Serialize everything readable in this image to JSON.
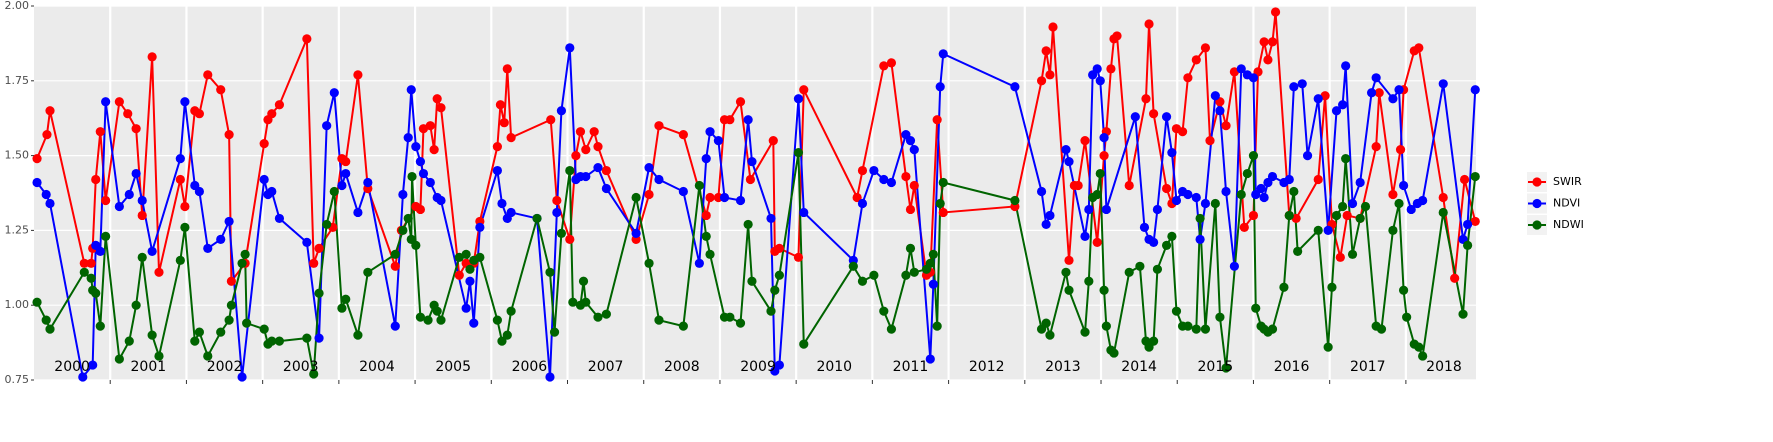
{
  "chart_data": {
    "type": "line",
    "xlim": [
      2000,
      2018.92
    ],
    "xticks": [
      2001,
      2002,
      2003,
      2004,
      2005,
      2006,
      2007,
      2008,
      2009,
      2010,
      2011,
      2012,
      2013,
      2014,
      2015,
      2016,
      2017,
      2018
    ],
    "year_labels": [
      {
        "value": 2000.5,
        "label": "2000"
      },
      {
        "value": 2001.5,
        "label": "2001"
      },
      {
        "value": 2002.5,
        "label": "2002"
      },
      {
        "value": 2003.5,
        "label": "2003"
      },
      {
        "value": 2004.5,
        "label": "2004"
      },
      {
        "value": 2005.5,
        "label": "2005"
      },
      {
        "value": 2006.5,
        "label": "2006"
      },
      {
        "value": 2007.5,
        "label": "2007"
      },
      {
        "value": 2008.5,
        "label": "2008"
      },
      {
        "value": 2009.5,
        "label": "2009"
      },
      {
        "value": 2010.5,
        "label": "2010"
      },
      {
        "value": 2011.5,
        "label": "2011"
      },
      {
        "value": 2012.5,
        "label": "2012"
      },
      {
        "value": 2013.5,
        "label": "2013"
      },
      {
        "value": 2014.5,
        "label": "2014"
      },
      {
        "value": 2015.5,
        "label": "2015"
      },
      {
        "value": 2016.5,
        "label": "2016"
      },
      {
        "value": 2017.5,
        "label": "2017"
      },
      {
        "value": 2018.5,
        "label": "2018"
      }
    ],
    "ylim": [
      0.75,
      2.0
    ],
    "yticks": [
      {
        "value": 0.75,
        "label": "0.75"
      },
      {
        "value": 1.0,
        "label": "1.00"
      },
      {
        "value": 1.25,
        "label": "1.25"
      },
      {
        "value": 1.5,
        "label": "1.50"
      },
      {
        "value": 1.75,
        "label": "1.75"
      },
      {
        "value": 2.0,
        "label": "2.00"
      }
    ],
    "grid": true,
    "legend": "right",
    "series": [
      {
        "name": "SWIR",
        "color": "#ff0000",
        "x": [
          2000.04,
          2000.17,
          2000.21,
          2000.66,
          2000.75,
          2000.77,
          2000.81,
          2000.87,
          2000.94,
          2001.12,
          2001.23,
          2001.34,
          2001.42,
          2001.55,
          2001.64,
          2001.92,
          2001.98,
          2002.11,
          2002.17,
          2002.28,
          2002.45,
          2002.56,
          2002.59,
          2002.77,
          2003.02,
          2003.07,
          2003.12,
          2003.22,
          2003.58,
          2003.67,
          2003.74,
          2003.92,
          2004.04,
          2004.09,
          2004.25,
          2004.38,
          2004.74,
          2004.82,
          2005.01,
          2005.07,
          2005.11,
          2005.2,
          2005.25,
          2005.29,
          2005.34,
          2005.58,
          2005.67,
          2005.77,
          2005.85,
          2006.08,
          2006.12,
          2006.17,
          2006.21,
          2006.26,
          2006.78,
          2006.86,
          2007.03,
          2007.11,
          2007.17,
          2007.24,
          2007.35,
          2007.4,
          2007.51,
          2007.9,
          2008.07,
          2008.2,
          2008.52,
          2008.82,
          2008.87,
          2008.98,
          2009.06,
          2009.13,
          2009.27,
          2009.4,
          2009.7,
          2009.72,
          2009.78,
          2010.03,
          2010.1,
          2010.8,
          2010.87,
          2011.15,
          2011.25,
          2011.44,
          2011.5,
          2011.55,
          2011.71,
          2011.76,
          2011.85,
          2011.93,
          2012.87,
          2013.22,
          2013.28,
          2013.33,
          2013.37,
          2013.58,
          2013.65,
          2013.7,
          2013.79,
          2013.95,
          2014.04,
          2014.07,
          2014.13,
          2014.17,
          2014.21,
          2014.37,
          2014.59,
          2014.63,
          2014.69,
          2014.86,
          2014.93,
          2014.99,
          2015.07,
          2015.14,
          2015.25,
          2015.37,
          2015.43,
          2015.56,
          2015.64,
          2015.75,
          2015.88,
          2016.0,
          2016.06,
          2016.14,
          2016.19,
          2016.25,
          2016.29,
          2016.47,
          2016.56,
          2016.85,
          2016.94,
          2017.03,
          2017.14,
          2017.23,
          2017.4,
          2017.61,
          2017.65,
          2017.83,
          2017.93,
          2017.97,
          2018.11,
          2018.17,
          2018.49,
          2018.64,
          2018.77,
          2018.91
        ],
        "values": [
          1.49,
          1.57,
          1.65,
          1.14,
          1.14,
          1.19,
          1.42,
          1.58,
          1.35,
          1.68,
          1.64,
          1.59,
          1.3,
          1.83,
          1.11,
          1.42,
          1.33,
          1.65,
          1.64,
          1.77,
          1.72,
          1.57,
          1.08,
          1.14,
          1.54,
          1.62,
          1.64,
          1.67,
          1.89,
          1.14,
          1.19,
          1.26,
          1.49,
          1.48,
          1.77,
          1.39,
          1.13,
          1.25,
          1.33,
          1.32,
          1.59,
          1.6,
          1.52,
          1.69,
          1.66,
          1.1,
          1.14,
          1.14,
          1.28,
          1.53,
          1.67,
          1.61,
          1.79,
          1.56,
          1.62,
          1.35,
          1.22,
          1.5,
          1.58,
          1.52,
          1.58,
          1.53,
          1.45,
          1.22,
          1.37,
          1.6,
          1.57,
          1.3,
          1.36,
          1.36,
          1.62,
          1.62,
          1.68,
          1.42,
          1.55,
          1.18,
          1.19,
          1.16,
          1.72,
          1.36,
          1.45,
          1.8,
          1.81,
          1.43,
          1.32,
          1.4,
          1.1,
          1.11,
          1.62,
          1.31,
          1.33,
          1.75,
          1.85,
          1.77,
          1.93,
          1.15,
          1.4,
          1.4,
          1.55,
          1.21,
          1.5,
          1.58,
          1.79,
          1.89,
          1.9,
          1.4,
          1.69,
          1.94,
          1.64,
          1.39,
          1.34,
          1.59,
          1.58,
          1.76,
          1.82,
          1.86,
          1.55,
          1.68,
          1.6,
          1.78,
          1.26,
          1.3,
          1.78,
          1.88,
          1.82,
          1.88,
          1.98,
          1.3,
          1.29,
          1.42,
          1.7,
          1.27,
          1.16,
          1.3,
          1.29,
          1.53,
          1.71,
          1.37,
          1.52,
          1.72,
          1.85,
          1.86,
          1.36,
          1.09,
          1.42,
          1.28
        ]
      },
      {
        "name": "NDVI",
        "color": "#0000ff",
        "x": [
          2000.04,
          2000.16,
          2000.21,
          2000.64,
          2000.77,
          2000.81,
          2000.87,
          2000.94,
          2001.12,
          2001.25,
          2001.34,
          2001.42,
          2001.55,
          2001.92,
          2001.98,
          2002.11,
          2002.17,
          2002.28,
          2002.45,
          2002.56,
          2002.73,
          2003.02,
          2003.07,
          2003.12,
          2003.22,
          2003.58,
          2003.74,
          2003.84,
          2003.94,
          2004.04,
          2004.09,
          2004.25,
          2004.38,
          2004.74,
          2004.84,
          2004.91,
          2004.95,
          2005.01,
          2005.07,
          2005.11,
          2005.2,
          2005.29,
          2005.34,
          2005.67,
          2005.72,
          2005.77,
          2005.85,
          2006.08,
          2006.14,
          2006.21,
          2006.26,
          2006.6,
          2006.77,
          2006.86,
          2006.92,
          2007.03,
          2007.11,
          2007.17,
          2007.24,
          2007.4,
          2007.51,
          2007.9,
          2008.07,
          2008.2,
          2008.52,
          2008.73,
          2008.82,
          2008.87,
          2008.98,
          2009.06,
          2009.27,
          2009.37,
          2009.42,
          2009.67,
          2009.72,
          2009.78,
          2010.03,
          2010.1,
          2010.75,
          2010.87,
          2011.02,
          2011.15,
          2011.25,
          2011.44,
          2011.5,
          2011.55,
          2011.76,
          2011.8,
          2011.89,
          2011.93,
          2012.87,
          2013.22,
          2013.28,
          2013.33,
          2013.54,
          2013.58,
          2013.79,
          2013.84,
          2013.89,
          2013.95,
          2013.99,
          2014.04,
          2014.07,
          2014.45,
          2014.57,
          2014.63,
          2014.69,
          2014.74,
          2014.86,
          2014.93,
          2014.99,
          2015.07,
          2015.14,
          2015.25,
          2015.3,
          2015.37,
          2015.5,
          2015.56,
          2015.64,
          2015.75,
          2015.84,
          2015.92,
          2016.0,
          2016.03,
          2016.1,
          2016.14,
          2016.19,
          2016.25,
          2016.4,
          2016.47,
          2016.53,
          2016.64,
          2016.71,
          2016.85,
          2016.98,
          2017.09,
          2017.17,
          2017.21,
          2017.3,
          2017.4,
          2017.55,
          2017.61,
          2017.83,
          2017.91,
          2017.97,
          2018.07,
          2018.15,
          2018.22,
          2018.49,
          2018.75,
          2018.81,
          2018.91
        ],
        "values": [
          1.41,
          1.37,
          1.34,
          0.76,
          0.8,
          1.2,
          1.18,
          1.68,
          1.33,
          1.37,
          1.44,
          1.35,
          1.18,
          1.49,
          1.68,
          1.4,
          1.38,
          1.19,
          1.22,
          1.28,
          0.76,
          1.42,
          1.37,
          1.38,
          1.29,
          1.21,
          0.89,
          1.6,
          1.71,
          1.4,
          1.44,
          1.31,
          1.41,
          0.93,
          1.37,
          1.56,
          1.72,
          1.53,
          1.48,
          1.44,
          1.41,
          1.36,
          1.35,
          0.99,
          1.08,
          0.94,
          1.26,
          1.45,
          1.34,
          1.29,
          1.31,
          1.29,
          0.76,
          1.31,
          1.65,
          1.86,
          1.42,
          1.43,
          1.43,
          1.46,
          1.39,
          1.24,
          1.46,
          1.42,
          1.38,
          1.14,
          1.49,
          1.58,
          1.55,
          1.36,
          1.35,
          1.62,
          1.48,
          1.29,
          0.78,
          0.8,
          1.69,
          1.31,
          1.15,
          1.34,
          1.45,
          1.42,
          1.41,
          1.57,
          1.55,
          1.52,
          0.82,
          1.07,
          1.73,
          1.84,
          1.73,
          1.38,
          1.27,
          1.3,
          1.52,
          1.48,
          1.23,
          1.32,
          1.77,
          1.79,
          1.75,
          1.56,
          1.32,
          1.63,
          1.26,
          1.22,
          1.21,
          1.32,
          1.63,
          1.51,
          1.35,
          1.38,
          1.37,
          1.36,
          1.22,
          1.34,
          1.7,
          1.65,
          1.38,
          1.13,
          1.79,
          1.77,
          1.76,
          1.37,
          1.39,
          1.36,
          1.41,
          1.43,
          1.41,
          1.42,
          1.73,
          1.74,
          1.5,
          1.69,
          1.25,
          1.65,
          1.67,
          1.8,
          1.34,
          1.41,
          1.71,
          1.76,
          1.69,
          1.72,
          1.4,
          1.32,
          1.34,
          1.35,
          1.74,
          1.22,
          1.27,
          1.72
        ]
      },
      {
        "name": "NDWI",
        "color": "#006400",
        "x": [
          2000.04,
          2000.16,
          2000.21,
          2000.66,
          2000.75,
          2000.77,
          2000.81,
          2000.87,
          2000.94,
          2001.12,
          2001.25,
          2001.34,
          2001.42,
          2001.55,
          2001.64,
          2001.92,
          2001.98,
          2002.11,
          2002.17,
          2002.28,
          2002.45,
          2002.56,
          2002.59,
          2002.73,
          2002.77,
          2002.79,
          2003.02,
          2003.07,
          2003.12,
          2003.22,
          2003.58,
          2003.67,
          2003.74,
          2003.84,
          2003.94,
          2004.04,
          2004.09,
          2004.25,
          2004.38,
          2004.74,
          2004.84,
          2004.91,
          2004.95,
          2004.96,
          2005.01,
          2005.07,
          2005.17,
          2005.25,
          2005.29,
          2005.34,
          2005.58,
          2005.67,
          2005.72,
          2005.77,
          2005.85,
          2006.08,
          2006.14,
          2006.21,
          2006.26,
          2006.6,
          2006.77,
          2006.83,
          2006.92,
          2007.03,
          2007.07,
          2007.17,
          2007.21,
          2007.24,
          2007.4,
          2007.51,
          2007.9,
          2008.07,
          2008.2,
          2008.52,
          2008.73,
          2008.82,
          2008.87,
          2009.06,
          2009.13,
          2009.27,
          2009.37,
          2009.42,
          2009.67,
          2009.72,
          2009.78,
          2010.03,
          2010.1,
          2010.75,
          2010.87,
          2011.02,
          2011.15,
          2011.25,
          2011.44,
          2011.5,
          2011.55,
          2011.71,
          2011.76,
          2011.8,
          2011.85,
          2011.89,
          2011.93,
          2012.87,
          2013.22,
          2013.28,
          2013.33,
          2013.54,
          2013.58,
          2013.79,
          2013.84,
          2013.89,
          2013.95,
          2013.99,
          2014.04,
          2014.07,
          2014.13,
          2014.17,
          2014.37,
          2014.51,
          2014.59,
          2014.63,
          2014.69,
          2014.74,
          2014.86,
          2014.93,
          2014.99,
          2015.07,
          2015.14,
          2015.25,
          2015.3,
          2015.37,
          2015.5,
          2015.56,
          2015.64,
          2015.84,
          2015.92,
          2016.0,
          2016.03,
          2016.1,
          2016.14,
          2016.19,
          2016.25,
          2016.4,
          2016.47,
          2016.53,
          2016.58,
          2016.85,
          2016.98,
          2017.03,
          2017.09,
          2017.17,
          2017.21,
          2017.3,
          2017.4,
          2017.47,
          2017.61,
          2017.68,
          2017.83,
          2017.91,
          2017.97,
          2018.01,
          2018.11,
          2018.17,
          2018.22,
          2018.49,
          2018.75,
          2018.81,
          2018.91
        ],
        "values": [
          1.01,
          0.95,
          0.92,
          1.11,
          1.09,
          1.05,
          1.04,
          0.93,
          1.23,
          0.82,
          0.88,
          1.0,
          1.16,
          0.9,
          0.83,
          1.15,
          1.26,
          0.88,
          0.91,
          0.83,
          0.91,
          0.95,
          1.0,
          1.14,
          1.17,
          0.94,
          0.92,
          0.87,
          0.88,
          0.88,
          0.89,
          0.77,
          1.04,
          1.27,
          1.38,
          0.99,
          1.02,
          0.9,
          1.11,
          1.17,
          1.25,
          1.29,
          1.22,
          1.43,
          1.2,
          0.96,
          0.95,
          1.0,
          0.98,
          0.95,
          1.16,
          1.17,
          1.12,
          1.15,
          1.16,
          0.95,
          0.88,
          0.9,
          0.98,
          1.29,
          1.11,
          0.91,
          1.24,
          1.45,
          1.01,
          1.0,
          1.08,
          1.01,
          0.96,
          0.97,
          1.36,
          1.14,
          0.95,
          0.93,
          1.4,
          1.23,
          1.17,
          0.96,
          0.96,
          0.94,
          1.27,
          1.08,
          0.98,
          1.05,
          1.1,
          1.51,
          0.87,
          1.13,
          1.08,
          1.1,
          0.98,
          0.92,
          1.1,
          1.19,
          1.11,
          1.12,
          1.14,
          1.17,
          0.93,
          1.34,
          1.41,
          1.35,
          0.92,
          0.94,
          0.9,
          1.11,
          1.05,
          0.91,
          1.08,
          1.36,
          1.37,
          1.44,
          1.05,
          0.93,
          0.85,
          0.84,
          1.11,
          1.13,
          0.88,
          0.86,
          0.88,
          1.12,
          1.2,
          1.23,
          0.98,
          0.93,
          0.93,
          0.92,
          1.29,
          0.92,
          1.34,
          0.96,
          0.79,
          1.37,
          1.44,
          1.5,
          0.99,
          0.93,
          0.92,
          0.91,
          0.92,
          1.06,
          1.3,
          1.38,
          1.18,
          1.25,
          0.86,
          1.06,
          1.3,
          1.33,
          1.49,
          1.17,
          1.29,
          1.33,
          0.93,
          0.92,
          1.25,
          1.34,
          1.05,
          0.96,
          0.87,
          0.86,
          0.83,
          1.31,
          0.97,
          1.2,
          1.43
        ]
      }
    ]
  }
}
